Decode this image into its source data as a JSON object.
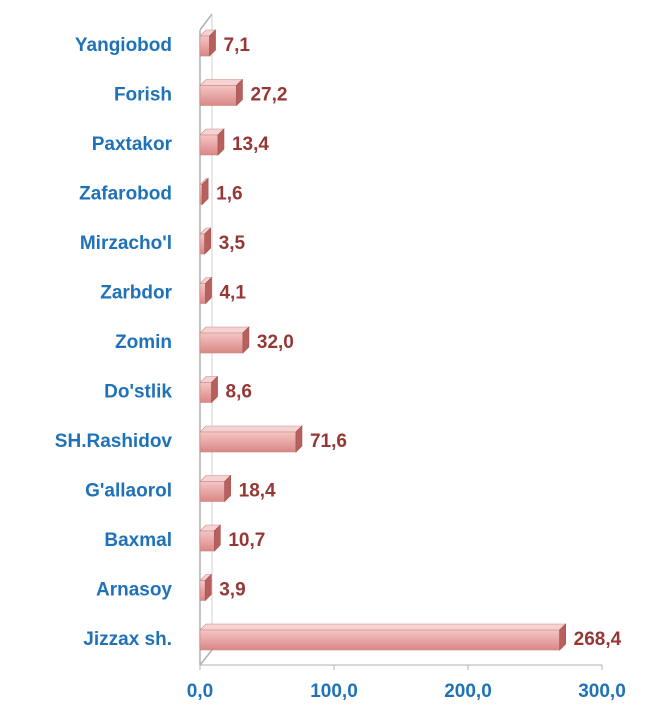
{
  "chart_data": {
    "type": "bar",
    "orientation": "horizontal",
    "categories": [
      "Yangiobod",
      "Forish",
      "Paxtakor",
      "Zafarobod",
      "Mirzacho'l",
      "Zarbdor",
      "Zomin",
      "Do'stlik",
      "SH.Rashidov",
      "G'allaorol",
      "Baxmal",
      "Arnasoy",
      "Jizzax sh."
    ],
    "values": [
      7.1,
      27.2,
      13.4,
      1.6,
      3.5,
      4.1,
      32.0,
      8.6,
      71.6,
      18.4,
      10.7,
      3.9,
      268.4
    ],
    "value_labels": [
      "7,1",
      "27,2",
      "13,4",
      "1,6",
      "3,5",
      "4,1",
      "32,0",
      "8,6",
      "71,6",
      "18,4",
      "10,7",
      "3,9",
      "268,4"
    ],
    "color": "#e8a3a2",
    "xlim": [
      0,
      300
    ],
    "xticks": [
      {
        "value": 0,
        "label": "0,0"
      },
      {
        "value": 100,
        "label": "100,0"
      },
      {
        "value": 200,
        "label": "200,0"
      },
      {
        "value": 300,
        "label": "300,0"
      }
    ],
    "grid": false
  }
}
